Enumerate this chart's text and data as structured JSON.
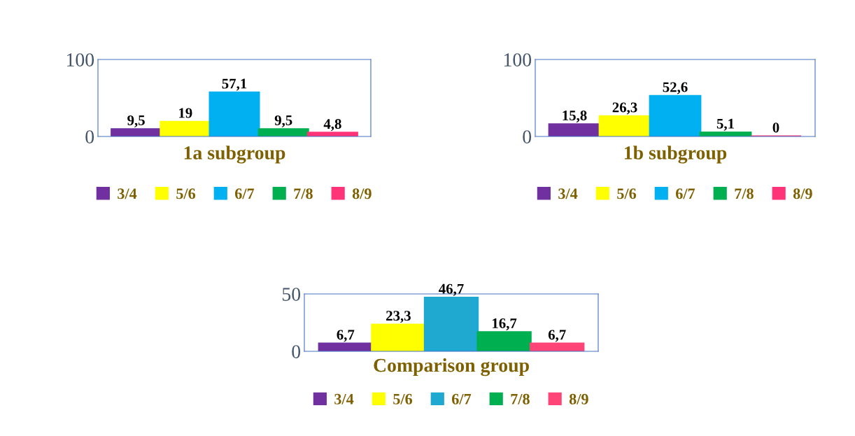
{
  "chart_data": [
    {
      "type": "bar",
      "title": "1a subgroup",
      "categories": [
        null
      ],
      "ylim": [
        0,
        100
      ],
      "yticks": [
        0,
        100
      ],
      "tick_labels": "y",
      "legend": "bottom",
      "grid": false,
      "series": [
        {
          "name": "3/4",
          "color": "#7030a0",
          "values": [
            9.5
          ],
          "value_labels": [
            "9,5"
          ]
        },
        {
          "name": "5/6",
          "color": "#ffff00",
          "values": [
            19
          ],
          "value_labels": [
            "19"
          ]
        },
        {
          "name": "6/7",
          "color": "#00b0f0",
          "values": [
            57.1
          ],
          "value_labels": [
            "57,1"
          ]
        },
        {
          "name": "7/8",
          "color": "#00b050",
          "values": [
            9.5
          ],
          "value_labels": [
            "9,5"
          ]
        },
        {
          "name": "8/9",
          "color": "#ff3377",
          "values": [
            4.8
          ],
          "value_labels": [
            "4,8"
          ]
        }
      ]
    },
    {
      "type": "bar",
      "title": "1b subgroup",
      "categories": [
        null
      ],
      "ylim": [
        0,
        100
      ],
      "yticks": [
        0,
        100
      ],
      "tick_labels": "y",
      "legend": "bottom",
      "grid": false,
      "series": [
        {
          "name": "3/4",
          "color": "#7030a0",
          "values": [
            15.8
          ],
          "value_labels": [
            "15,8"
          ]
        },
        {
          "name": "5/6",
          "color": "#ffff00",
          "values": [
            26.3
          ],
          "value_labels": [
            "26,3"
          ]
        },
        {
          "name": "6/7",
          "color": "#00b0f0",
          "values": [
            52.6
          ],
          "value_labels": [
            "52,6"
          ]
        },
        {
          "name": "7/8",
          "color": "#00b050",
          "values": [
            5.1
          ],
          "value_labels": [
            "5,1"
          ]
        },
        {
          "name": "8/9",
          "color": "#ff3377",
          "values": [
            0
          ],
          "value_labels": [
            "0"
          ]
        }
      ]
    },
    {
      "type": "bar",
      "title": "Comparison group",
      "categories": [
        null
      ],
      "ylim": [
        0,
        50
      ],
      "yticks": [
        0,
        50
      ],
      "tick_labels": "y",
      "legend": "bottom",
      "grid": false,
      "series": [
        {
          "name": "3/4",
          "color": "#7030a0",
          "values": [
            6.7
          ],
          "value_labels": [
            "6,7"
          ]
        },
        {
          "name": "5/6",
          "color": "#ffff00",
          "values": [
            23.3
          ],
          "value_labels": [
            "23,3"
          ]
        },
        {
          "name": "6/7",
          "color": "#1fa8d0",
          "values": [
            46.7
          ],
          "value_labels": [
            "46,7"
          ]
        },
        {
          "name": "7/8",
          "color": "#00b050",
          "values": [
            16.7
          ],
          "value_labels": [
            "16,7"
          ]
        },
        {
          "name": "8/9",
          "color": "#ff4477",
          "values": [
            6.7
          ],
          "value_labels": [
            "6,7"
          ]
        }
      ]
    }
  ]
}
